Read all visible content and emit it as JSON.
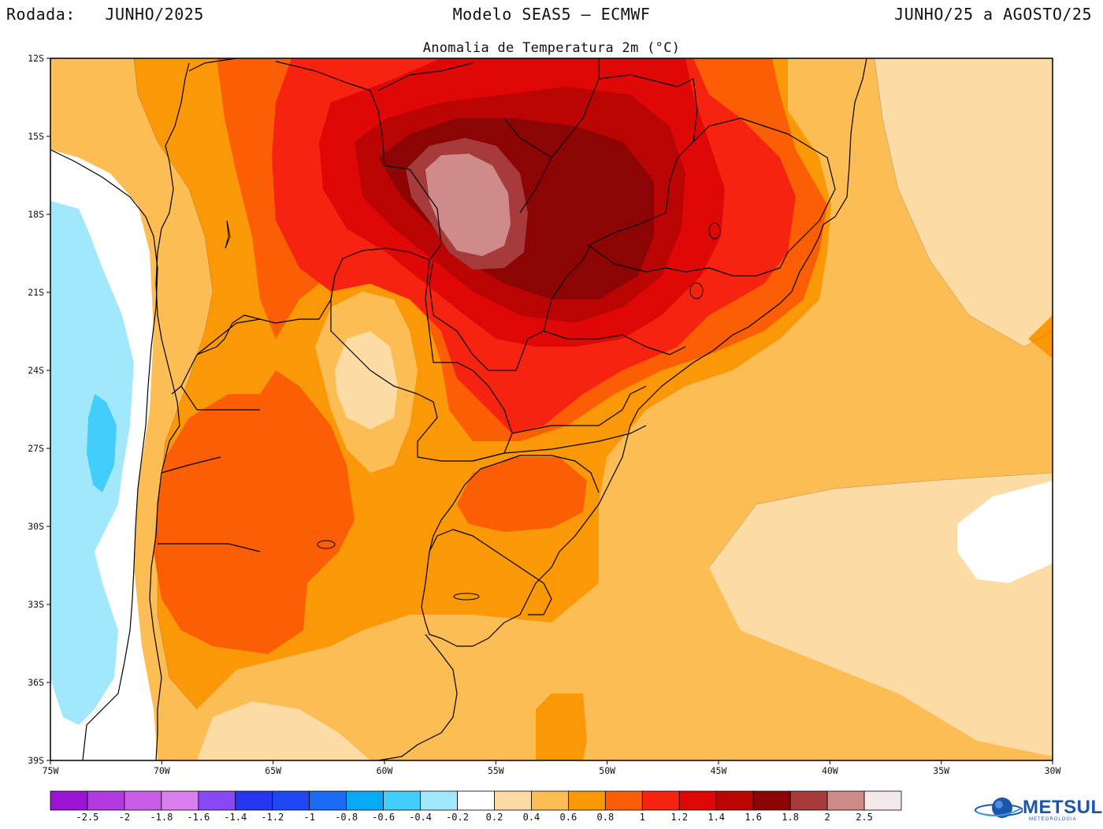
{
  "header": {
    "rodada_label": "Rodada:",
    "rodada_value": "JUNHO/2025",
    "model": "Modelo SEAS5 – ECMWF",
    "period": "JUNHO/25 a AGOSTO/25",
    "subtitle": "Anomalia de Temperatura 2m (°C)"
  },
  "map": {
    "lon_range": [
      -75,
      -30
    ],
    "lat_range": [
      -39,
      -12
    ],
    "lon_ticks": [
      "75W",
      "70W",
      "65W",
      "60W",
      "55W",
      "50W",
      "45W",
      "40W",
      "35W",
      "30W"
    ],
    "lat_ticks": [
      "12S",
      "15S",
      "18S",
      "21S",
      "24S",
      "27S",
      "30S",
      "33S",
      "36S",
      "39S"
    ]
  },
  "colorbar": {
    "colors": [
      "#9b14d6",
      "#b33ae0",
      "#c85ee6",
      "#db7ef0",
      "#8a48f5",
      "#2636f0",
      "#1e48f5",
      "#1a6cf5",
      "#08aaf5",
      "#42cdfa",
      "#a2e8fd",
      "#ffffff",
      "#fddba4",
      "#fcbd55",
      "#fb9808",
      "#fb5e05",
      "#f52310",
      "#e00707",
      "#bb0505",
      "#8c0404",
      "#a73b3b",
      "#d08a8a",
      "#f5e8e8"
    ],
    "labels": [
      "-2.5",
      "-2",
      "-1.8",
      "-1.6",
      "-1.4",
      "-1.2",
      "-1",
      "-0.8",
      "-0.6",
      "-0.4",
      "-0.2",
      "0.2",
      "0.4",
      "0.6",
      "0.8",
      "1",
      "1.2",
      "1.4",
      "1.6",
      "1.8",
      "2",
      "2.5"
    ]
  },
  "logo": {
    "name": "METSUL",
    "sub": "METEOROLOGIA"
  }
}
